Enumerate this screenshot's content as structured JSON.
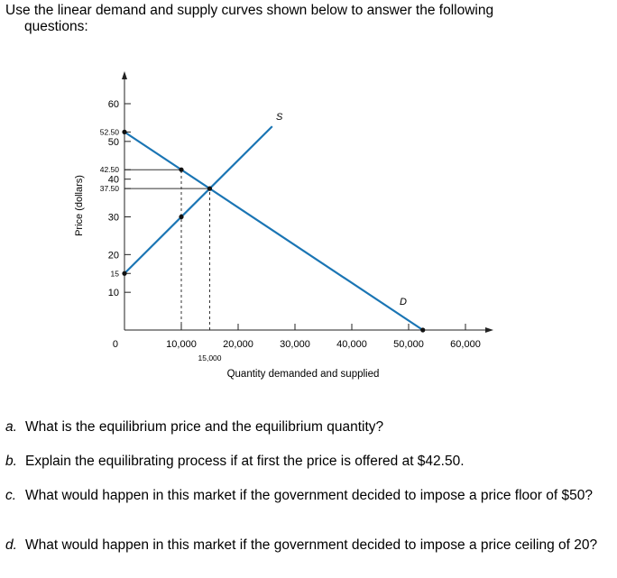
{
  "intro": {
    "line1": "Use the linear demand and supply curves shown below to answer the following",
    "line2": "questions:"
  },
  "chart_data": {
    "type": "line",
    "ylabel": "Price (dollars)",
    "xlabel": "Quantity demanded and supplied",
    "xlim": [
      0,
      60000
    ],
    "ylim": [
      0,
      60
    ],
    "y_ticks": [
      {
        "value": 60,
        "label": "60",
        "big": true
      },
      {
        "value": 52.5,
        "label": "52.50",
        "big": false
      },
      {
        "value": 50,
        "label": "50",
        "big": true
      },
      {
        "value": 42.5,
        "label": "42.50",
        "big": false
      },
      {
        "value": 40,
        "label": "40",
        "big": true
      },
      {
        "value": 37.5,
        "label": "37.50",
        "big": false
      },
      {
        "value": 30,
        "label": "30",
        "big": true
      },
      {
        "value": 20,
        "label": "20",
        "big": true
      },
      {
        "value": 15,
        "label": "15",
        "big": false
      },
      {
        "value": 10,
        "label": "10",
        "big": true
      },
      {
        "value": 0,
        "label": "0",
        "big": true
      }
    ],
    "x_ticks": [
      {
        "value": 10000,
        "label": "10,000",
        "big": true
      },
      {
        "value": 15000,
        "label": "15,000",
        "big": false
      },
      {
        "value": 20000,
        "label": "20,000",
        "big": true
      },
      {
        "value": 30000,
        "label": "30,000",
        "big": true
      },
      {
        "value": 40000,
        "label": "40,000",
        "big": true
      },
      {
        "value": 50000,
        "label": "50,000",
        "big": true
      },
      {
        "value": 60000,
        "label": "60,000",
        "big": true
      }
    ],
    "series": [
      {
        "name": "D",
        "x": [
          0,
          52500
        ],
        "y": [
          52.5,
          0
        ],
        "color": "#1a75b4"
      },
      {
        "name": "S",
        "x": [
          0,
          26000
        ],
        "y": [
          15,
          54
        ],
        "color": "#1a75b4"
      }
    ],
    "points": [
      {
        "x": 0,
        "y": 52.5
      },
      {
        "x": 0,
        "y": 15
      },
      {
        "x": 10000,
        "y": 42.5
      },
      {
        "x": 10000,
        "y": 30
      },
      {
        "x": 15000,
        "y": 37.5
      },
      {
        "x": 52500,
        "y": 0
      }
    ],
    "guide_lines": [
      {
        "from": [
          0,
          42.5
        ],
        "to": [
          10000,
          42.5
        ],
        "style": "solid"
      },
      {
        "from": [
          0,
          37.5
        ],
        "to": [
          15000,
          37.5
        ],
        "style": "solid"
      },
      {
        "from": [
          10000,
          0
        ],
        "to": [
          10000,
          42.5
        ],
        "style": "dashed"
      },
      {
        "from": [
          15000,
          0
        ],
        "to": [
          15000,
          37.5
        ],
        "style": "dashed"
      }
    ]
  },
  "questions": [
    {
      "letter": "a.",
      "text": "What is the equilibrium price and the equilibrium quantity?"
    },
    {
      "letter": "b.",
      "text": "Explain the equilibrating process if at first the price is offered at $42.50."
    },
    {
      "letter": "c.",
      "text": "What would happen in this market if the government decided to impose a price floor of $50?"
    },
    {
      "letter": "d.",
      "text": "What would happen in this market if the government decided to impose a price ceiling of 20?"
    }
  ]
}
